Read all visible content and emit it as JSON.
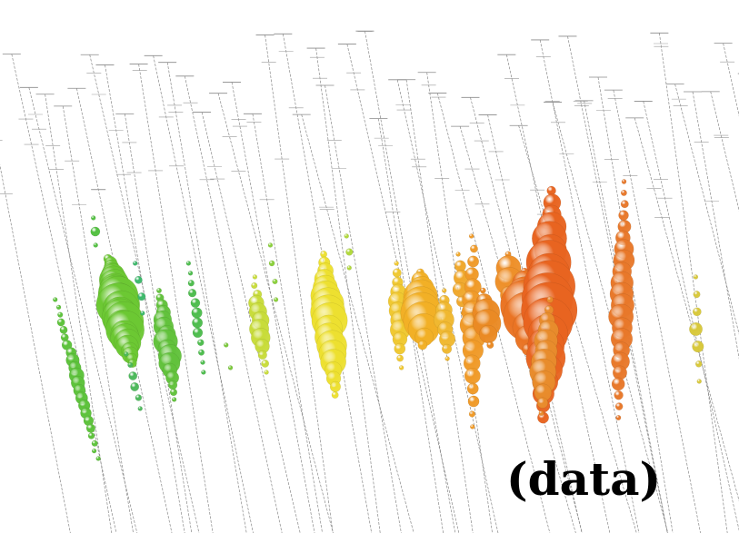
{
  "label": "(data)"
}
